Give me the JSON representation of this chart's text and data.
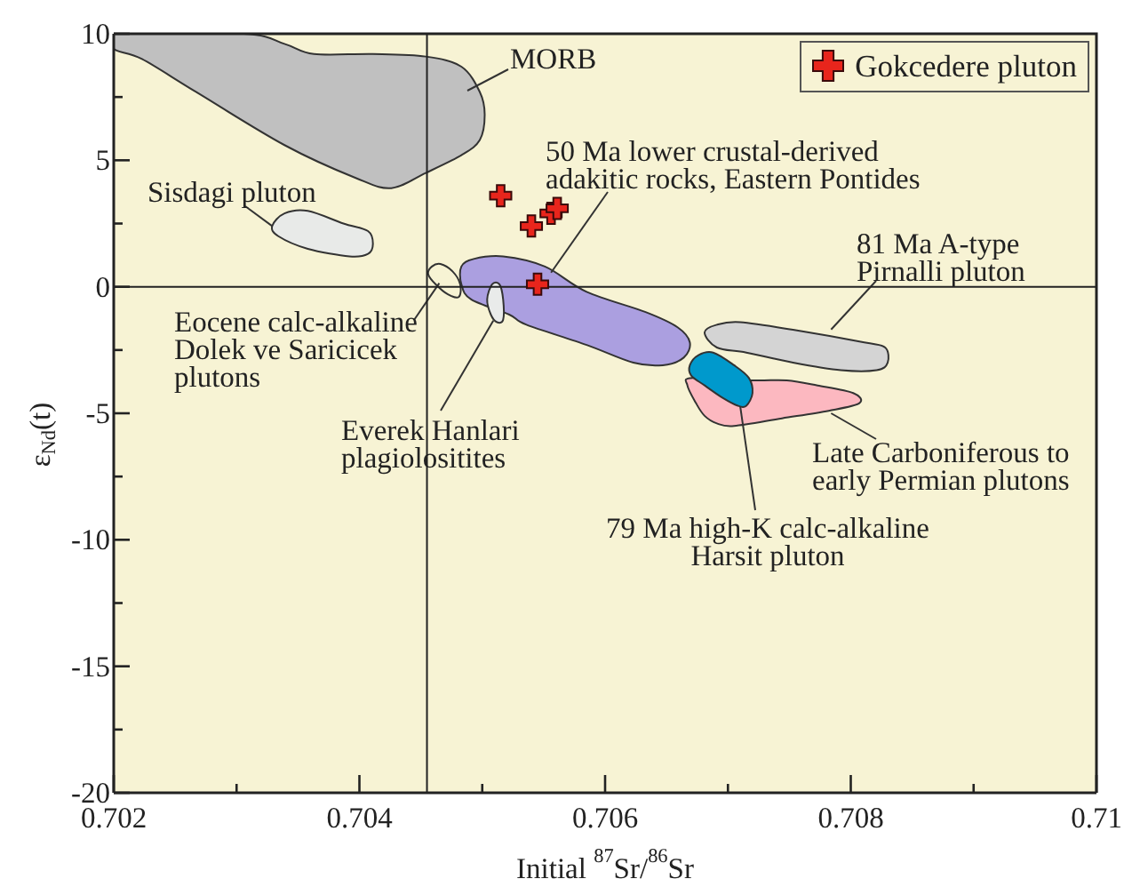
{
  "chart_data": {
    "type": "scatter",
    "xlabel": "Initial $^{87}$Sr/$^{86}$Sr",
    "ylabel": "ε$_{Nd}$(t)",
    "xlim": [
      0.702,
      0.71
    ],
    "xticks": [
      0.702,
      {
        "value": 0.703,
        "label": null
      },
      0.704,
      {
        "value": 0.705,
        "label": null
      },
      0.706,
      {
        "value": 0.707,
        "label": null
      },
      0.708,
      {
        "value": 0.709,
        "label": null
      },
      0.71
    ],
    "ylim": [
      -20,
      10
    ],
    "yticks": [
      -20,
      {
        "value": -17.5,
        "label": null
      },
      -15,
      {
        "value": -12.5,
        "label": null
      },
      -10,
      {
        "value": -7.5,
        "label": null
      },
      -5,
      {
        "value": -2.5,
        "label": null
      },
      0,
      {
        "value": 2.5,
        "label": null
      },
      5,
      {
        "value": 7.5,
        "label": null
      },
      10
    ],
    "ref_lines": [
      {
        "axis": "x",
        "value": 0.70455
      },
      {
        "axis": "y",
        "value": 0
      }
    ],
    "legend": "top right",
    "series": [
      {
        "type": "area",
        "color": "#c0c0c0",
        "x": [
          0.702,
          0.70306,
          0.70339,
          0.70363,
          0.70411,
          0.70454,
          0.70483,
          0.70498,
          0.70502,
          0.70498,
          0.70483,
          0.70454,
          0.70426,
          0.70397,
          0.70339,
          0.70267,
          0.70223,
          0.702
        ],
        "values": [
          10,
          10,
          9.6,
          9.2,
          9.2,
          9.1,
          8.7,
          7.7,
          6.8,
          5.8,
          5.2,
          4.5,
          3.9,
          4.3,
          5.6,
          7.7,
          9.0,
          9.4
        ]
      },
      {
        "type": "area",
        "color": "#e8eae8",
        "x": [
          0.70329,
          0.70339,
          0.70358,
          0.70387,
          0.70407,
          0.70411,
          0.70407,
          0.70392,
          0.70358,
          0.70334
        ],
        "values": [
          2.4,
          2.9,
          3.0,
          2.5,
          2.2,
          1.7,
          1.3,
          1.2,
          1.5,
          2.0
        ]
      },
      {
        "type": "area",
        "color": "#f7f3d4",
        "x": [
          0.70459,
          0.70466,
          0.70476,
          0.70482,
          0.70481,
          0.70472,
          0.70462,
          0.70456
        ],
        "values": [
          0.8,
          0.9,
          0.6,
          0.1,
          -0.4,
          -0.3,
          0.1,
          0.5
        ]
      },
      {
        "type": "area",
        "color": "#ab9fe0",
        "x": [
          0.70483,
          0.70493,
          0.70517,
          0.70551,
          0.70585,
          0.70633,
          0.70659,
          0.70669,
          0.70664,
          0.70647,
          0.70623,
          0.70585,
          0.70536,
          0.70522,
          0.70491,
          0.70483
        ],
        "values": [
          0.8,
          1.1,
          1.2,
          0.8,
          -0.2,
          -1.0,
          -1.6,
          -2.2,
          -2.8,
          -3.1,
          -3.0,
          -2.3,
          -1.5,
          -1.1,
          -0.5,
          0.1
        ]
      },
      {
        "type": "area",
        "color": "#e9ebea",
        "x": [
          0.70508,
          0.70514,
          0.70517,
          0.70517,
          0.70512,
          0.70507,
          0.70504
        ],
        "values": [
          0.1,
          0.1,
          -0.5,
          -1.3,
          -1.4,
          -1.1,
          -0.5
        ]
      },
      {
        "type": "area",
        "color": "#d4d4d4",
        "x": [
          0.70681,
          0.70691,
          0.7071,
          0.70753,
          0.70811,
          0.70828,
          0.7083,
          0.70821,
          0.70792,
          0.70753,
          0.70715,
          0.70691
        ],
        "values": [
          -1.8,
          -1.5,
          -1.4,
          -1.7,
          -2.2,
          -2.4,
          -3.0,
          -3.3,
          -3.3,
          -3.0,
          -2.6,
          -2.4
        ]
      },
      {
        "type": "area",
        "color": "#fcb8c0",
        "x": [
          0.70667,
          0.70671,
          0.7072,
          0.70748,
          0.70773,
          0.70802,
          0.70807,
          0.70782,
          0.70744,
          0.70705,
          0.70691,
          0.70681,
          0.70674
        ],
        "values": [
          -3.9,
          -3.6,
          -3.7,
          -3.7,
          -3.9,
          -4.2,
          -4.6,
          -4.9,
          -5.2,
          -5.5,
          -5.4,
          -5.1,
          -4.6
        ]
      },
      {
        "type": "area",
        "color": "#0099cc",
        "x": [
          0.70669,
          0.70676,
          0.70688,
          0.70705,
          0.70717,
          0.7072,
          0.70715,
          0.70708,
          0.70696,
          0.70681,
          0.7067
        ],
        "values": [
          -3.1,
          -2.7,
          -2.6,
          -3.1,
          -3.6,
          -4.2,
          -4.7,
          -4.7,
          -4.4,
          -3.9,
          -3.5
        ]
      },
      {
        "name": "Gokcedere pluton",
        "color": "#e8251c",
        "marker": "cross",
        "x": [
          0.70515,
          0.7054,
          0.70556,
          0.70561,
          0.70545
        ],
        "values": [
          3.6,
          2.4,
          2.9,
          3.1,
          0.1
        ]
      }
    ],
    "annotations": [
      "MORB",
      {
        "text": "Sisdagi pluton",
        "x": 0.70329,
        "y": 2.4
      },
      {
        "text": "50 Ma lower crustal-derived\nadakitic rocks, Eastern Pontides",
        "x": 0.70556,
        "y": 0.56
      },
      {
        "text": "81 Ma A-type\nPirnalli pluton",
        "x": 0.70784,
        "y": -1.69
      },
      {
        "text": "Eocene calc-alkaline\nDolek ve Saricicek\nplutons",
        "x": 0.70465,
        "y": 0.14
      },
      {
        "text": "Everek Hanlari\nplagiolositites",
        "x": 0.70509,
        "y": -1.34
      },
      {
        "text": "Late Carboniferous to\nearly Permian plutons",
        "x": 0.70784,
        "y": -5.0
      },
      {
        "text": "79 Ma high-K calc-alkaline\nHarsit pluton",
        "x": 0.7071,
        "y": -4.72
      }
    ]
  }
}
